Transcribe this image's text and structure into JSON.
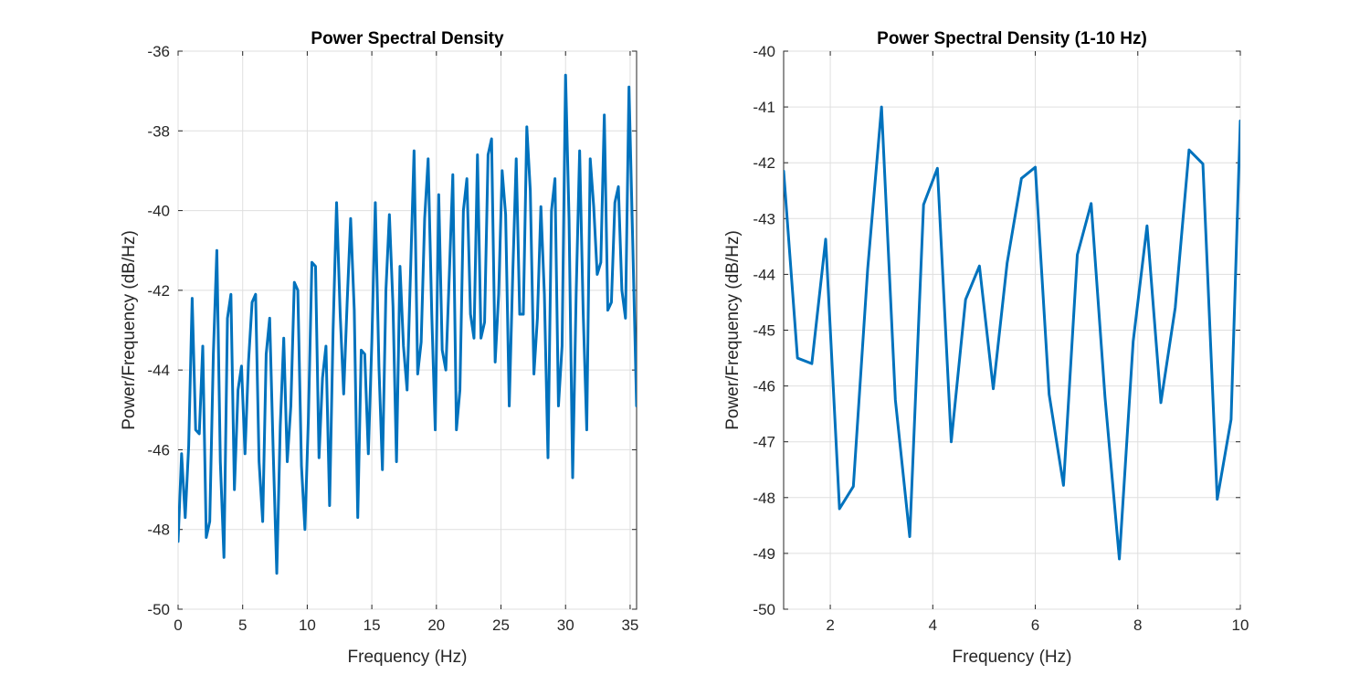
{
  "chart_data": [
    {
      "type": "line",
      "title": "Power Spectral Density",
      "xlabel": "Frequency (Hz)",
      "ylabel": "Power/Frequency (dB/Hz)",
      "xlim": [
        0,
        35.5
      ],
      "ylim": [
        -50,
        -36
      ],
      "xticks": [
        0,
        5,
        10,
        15,
        20,
        25,
        30,
        35
      ],
      "yticks": [
        -50,
        -48,
        -46,
        -44,
        -42,
        -40,
        -38,
        -36
      ],
      "grid": true,
      "color": "#0072BD",
      "series": [
        {
          "x": [
            0,
            0.27,
            0.55,
            0.82,
            1.09,
            1.36,
            1.64,
            1.91,
            2.18,
            2.45,
            2.73,
            3.0,
            3.27,
            3.55,
            3.82,
            4.09,
            4.36,
            4.64,
            4.91,
            5.18,
            5.45,
            5.73,
            6.0,
            6.27,
            6.55,
            6.82,
            7.09,
            7.36,
            7.64,
            7.91,
            8.18,
            8.45,
            8.73,
            9.0,
            9.27,
            9.55,
            9.82,
            10.09,
            10.36,
            10.64,
            10.91,
            11.18,
            11.45,
            11.73,
            12.0,
            12.27,
            12.55,
            12.82,
            13.09,
            13.36,
            13.64,
            13.91,
            14.18,
            14.45,
            14.73,
            15.0,
            15.27,
            15.55,
            15.82,
            16.09,
            16.36,
            16.64,
            16.91,
            17.18,
            17.45,
            17.73,
            18.0,
            18.27,
            18.55,
            18.82,
            19.09,
            19.36,
            19.64,
            19.91,
            20.18,
            20.45,
            20.73,
            21.0,
            21.27,
            21.55,
            21.82,
            22.09,
            22.36,
            22.64,
            22.91,
            23.18,
            23.45,
            23.73,
            24.0,
            24.27,
            24.55,
            24.82,
            25.09,
            25.36,
            25.64,
            25.91,
            26.18,
            26.45,
            26.73,
            27.0,
            27.27,
            27.55,
            27.82,
            28.09,
            28.36,
            28.64,
            28.91,
            29.18,
            29.45,
            29.73,
            30.0,
            30.27,
            30.55,
            30.82,
            31.09,
            31.36,
            31.64,
            31.91,
            32.18,
            32.45,
            32.73,
            33.0,
            33.27,
            33.55,
            33.82,
            34.09,
            34.36,
            34.64,
            34.91,
            35.18,
            35.5
          ],
          "y": [
            -48.3,
            -46.1,
            -47.7,
            -45.9,
            -42.2,
            -45.5,
            -45.6,
            -43.4,
            -48.2,
            -47.8,
            -43.6,
            -41.0,
            -46.3,
            -48.7,
            -42.7,
            -42.1,
            -47.0,
            -44.5,
            -43.9,
            -46.1,
            -43.8,
            -42.3,
            -42.1,
            -46.3,
            -47.8,
            -43.6,
            -42.7,
            -46.0,
            -49.1,
            -45.4,
            -43.2,
            -46.3,
            -44.9,
            -41.8,
            -42.0,
            -46.4,
            -48.0,
            -45.2,
            -41.3,
            -41.4,
            -46.2,
            -44.2,
            -43.4,
            -47.4,
            -43.0,
            -39.8,
            -42.6,
            -44.6,
            -42.3,
            -40.2,
            -42.5,
            -47.7,
            -43.5,
            -43.6,
            -46.1,
            -43.3,
            -39.8,
            -43.9,
            -46.5,
            -42.0,
            -40.1,
            -42.4,
            -46.3,
            -41.4,
            -43.4,
            -44.5,
            -41.5,
            -38.5,
            -44.1,
            -43.3,
            -40.2,
            -38.7,
            -42.6,
            -45.5,
            -39.6,
            -43.5,
            -44.0,
            -41.6,
            -39.1,
            -45.5,
            -44.5,
            -40.0,
            -39.2,
            -42.6,
            -43.2,
            -38.6,
            -43.2,
            -42.8,
            -38.6,
            -38.2,
            -43.8,
            -42.1,
            -39.0,
            -40.1,
            -44.9,
            -41.6,
            -38.7,
            -42.6,
            -42.6,
            -37.9,
            -39.5,
            -44.1,
            -42.7,
            -39.9,
            -42.1,
            -46.2,
            -40.0,
            -39.2,
            -44.9,
            -43.4,
            -36.6,
            -40.2,
            -46.7,
            -42.1,
            -38.5,
            -42.5,
            -45.5,
            -38.7,
            -39.9,
            -41.6,
            -41.3,
            -37.6,
            -42.5,
            -42.3,
            -39.8,
            -39.4,
            -42.0,
            -42.7,
            -36.9,
            -40.5,
            -44.9
          ]
        }
      ]
    },
    {
      "type": "line",
      "title": "Power Spectral Density (1-10 Hz)",
      "xlabel": "Frequency (Hz)",
      "ylabel": "Power/Frequency (dB/Hz)",
      "xlim": [
        1.09,
        10
      ],
      "ylim": [
        -50,
        -40
      ],
      "xticks": [
        2,
        4,
        6,
        8,
        10
      ],
      "yticks": [
        -50,
        -49,
        -48,
        -47,
        -46,
        -45,
        -44,
        -43,
        -42,
        -41,
        -40
      ],
      "grid": true,
      "color": "#0072BD",
      "series": [
        {
          "x": [
            1.09,
            1.36,
            1.64,
            1.91,
            2.18,
            2.45,
            2.73,
            3.0,
            3.27,
            3.55,
            3.82,
            4.09,
            4.36,
            4.64,
            4.91,
            5.18,
            5.45,
            5.73,
            6.0,
            6.27,
            6.55,
            6.82,
            7.09,
            7.36,
            7.64,
            7.91,
            8.18,
            8.45,
            8.73,
            9.0,
            9.27,
            9.55,
            9.82,
            10.0
          ],
          "y": [
            -42.15,
            -45.5,
            -45.6,
            -43.37,
            -48.2,
            -47.8,
            -43.9,
            -41.0,
            -46.25,
            -48.7,
            -42.75,
            -42.1,
            -47.0,
            -44.45,
            -43.85,
            -46.05,
            -43.8,
            -42.28,
            -42.08,
            -46.15,
            -47.78,
            -43.65,
            -42.73,
            -46.2,
            -49.1,
            -45.2,
            -43.13,
            -46.3,
            -44.6,
            -41.77,
            -42.02,
            -48.03,
            -46.6,
            -41.25
          ]
        }
      ]
    }
  ]
}
